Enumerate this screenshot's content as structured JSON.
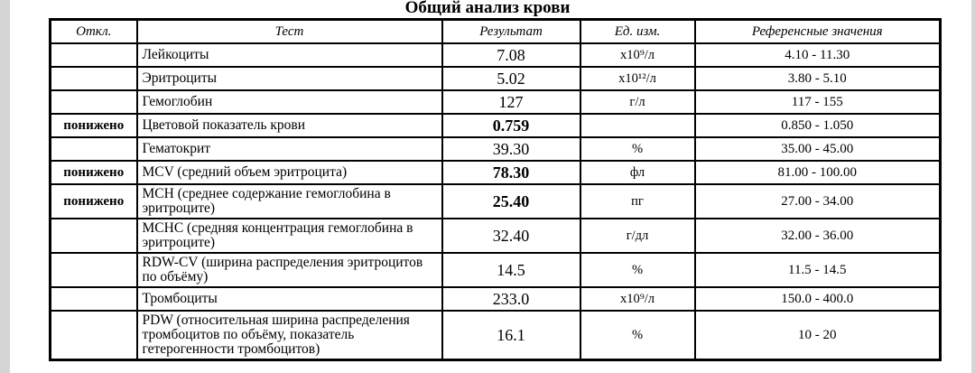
{
  "title": "Общий анализ крови",
  "page": {
    "edge_strip_color": "#d5d5d5",
    "background_color": "#ffffff",
    "border_color": "#000000"
  },
  "table": {
    "headers": {
      "deviation": "Откл.",
      "test": "Тест",
      "result": "Результат",
      "units": "Ед. изм.",
      "reference": "Референсные значения"
    },
    "rows": [
      {
        "deviation": "",
        "test": "Лейкоциты",
        "result": "7.08",
        "units": "х10⁹/л",
        "reference": "4.10 - 11.30",
        "flagged": false
      },
      {
        "deviation": "",
        "test": "Эритроциты",
        "result": "5.02",
        "units": "х10¹²/л",
        "reference": "3.80 - 5.10",
        "flagged": false
      },
      {
        "deviation": "",
        "test": "Гемоглобин",
        "result": "127",
        "units": "г/л",
        "reference": "117 - 155",
        "flagged": false
      },
      {
        "deviation": "понижено",
        "test": "Цветовой показатель крови",
        "result": "0.759",
        "units": "",
        "reference": "0.850 - 1.050",
        "flagged": true
      },
      {
        "deviation": "",
        "test": "Гематокрит",
        "result": "39.30",
        "units": "%",
        "reference": "35.00 - 45.00",
        "flagged": false
      },
      {
        "deviation": "понижено",
        "test": "MCV (средний объем эритроцита)",
        "result": "78.30",
        "units": "фл",
        "reference": "81.00 - 100.00",
        "flagged": true
      },
      {
        "deviation": "понижено",
        "test": "MCH (среднее содержание гемоглобина в эритроците)",
        "result": "25.40",
        "units": "пг",
        "reference": "27.00 - 34.00",
        "flagged": true
      },
      {
        "deviation": "",
        "test": "MCHC (средняя концентрация гемоглобина в эритроците)",
        "result": "32.40",
        "units": "г/дл",
        "reference": "32.00 - 36.00",
        "flagged": false
      },
      {
        "deviation": "",
        "test": "RDW-CV (ширина распределения эритроцитов по объёму)",
        "result": "14.5",
        "units": "%",
        "reference": "11.5 - 14.5",
        "flagged": false
      },
      {
        "deviation": "",
        "test": "Тромбоциты",
        "result": "233.0",
        "units": "х10⁹/л",
        "reference": "150.0 - 400.0",
        "flagged": false
      },
      {
        "deviation": "",
        "test": "PDW (относительная ширина распределения тромбоцитов по объёму, показатель гетерогенности тромбоцитов)",
        "result": "16.1",
        "units": "%",
        "reference": "10 - 20",
        "flagged": false
      }
    ]
  }
}
